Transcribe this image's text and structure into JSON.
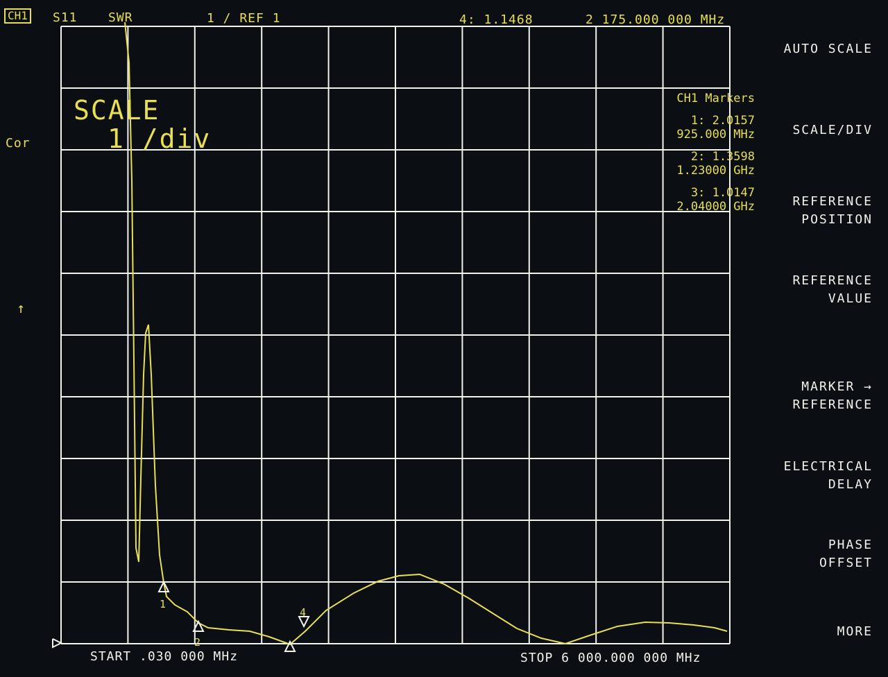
{
  "header": {
    "channel": "CH1",
    "parameter": "S11",
    "format": "SWR",
    "scale_ref": "1   / REF 1",
    "active_marker": "4: 1.1468",
    "active_marker_freq": "2 175.000 000 MHz"
  },
  "left_status": {
    "cor": "Cor",
    "ref_arrow": "↑"
  },
  "scale_overlay": {
    "title": "SCALE",
    "value": "1  /div"
  },
  "markers_panel": {
    "title": "CH1 Markers",
    "items": [
      {
        "value": "1: 2.0157",
        "freq": "925.000 MHz"
      },
      {
        "value": "2: 1.3598",
        "freq": "1.23000 GHz"
      },
      {
        "value": "3: 1.0147",
        "freq": "2.04000 GHz"
      }
    ]
  },
  "footer": {
    "start": "START  .030 000 MHz",
    "stop": "STOP 6 000.000 000 MHz"
  },
  "softkeys": [
    {
      "line1": "AUTO SCALE",
      "line2": ""
    },
    {
      "line1": "SCALE/DIV",
      "line2": ""
    },
    {
      "line1": "REFERENCE",
      "line2": "POSITION"
    },
    {
      "line1": "REFERENCE",
      "line2": "VALUE"
    },
    {
      "line1": "MARKER →",
      "line2": "REFERENCE"
    },
    {
      "line1": "ELECTRICAL",
      "line2": "DELAY"
    },
    {
      "line1": "PHASE",
      "line2": "OFFSET"
    },
    {
      "line1": "MORE",
      "line2": ""
    }
  ],
  "marker_labels": [
    "1",
    "2",
    "3",
    "4"
  ],
  "colors": {
    "trace": "#e8df55",
    "grid": "#f3f3ee",
    "background": "#0b0f14"
  }
}
